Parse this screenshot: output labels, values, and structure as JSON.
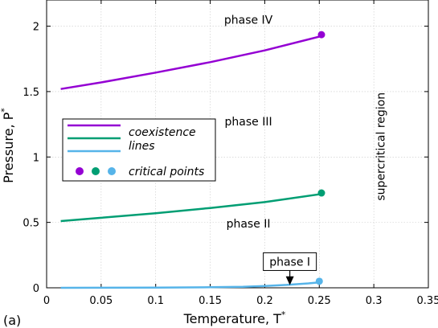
{
  "chart_data": {
    "type": "line",
    "panel_label": "(a)",
    "xlabel": "Temperature, T",
    "xlabel_sup": "*",
    "ylabel": "Pressure, P",
    "ylabel_sup": "*",
    "xlim": [
      0,
      0.35
    ],
    "ylim": [
      0,
      2.2
    ],
    "xticks": [
      0,
      0.05,
      0.1,
      0.15,
      0.2,
      0.25,
      0.3,
      0.35
    ],
    "xtick_labels": [
      "0",
      "0.05",
      "0.1",
      "0.15",
      "0.2",
      "0.25",
      "0.3",
      "0.35"
    ],
    "yticks": [
      0,
      0.5,
      1,
      1.5,
      2
    ],
    "ytick_labels": [
      "0",
      "0.5",
      "1",
      "1.5",
      "2"
    ],
    "grid": true,
    "series": [
      {
        "color": "#9400d3",
        "x": [
          0.013,
          0.05,
          0.1,
          0.15,
          0.2,
          0.25
        ],
        "y": [
          1.52,
          1.57,
          1.645,
          1.725,
          1.815,
          1.92
        ],
        "critical_point": [
          0.252,
          1.935
        ]
      },
      {
        "color": "#009e73",
        "x": [
          0.013,
          0.05,
          0.1,
          0.15,
          0.2,
          0.25
        ],
        "y": [
          0.51,
          0.535,
          0.57,
          0.61,
          0.655,
          0.715
        ],
        "critical_point": [
          0.252,
          0.725
        ]
      },
      {
        "color": "#56b4e9",
        "x": [
          0.013,
          0.1,
          0.15,
          0.18,
          0.2,
          0.22,
          0.24,
          0.25
        ],
        "y": [
          0.0,
          0.001,
          0.004,
          0.008,
          0.014,
          0.022,
          0.034,
          0.042
        ],
        "critical_point": [
          0.25,
          0.05
        ]
      }
    ],
    "region_labels": [
      {
        "text": "phase IV",
        "x": 0.185,
        "y": 2.02
      },
      {
        "text": "phase III",
        "x": 0.185,
        "y": 1.24
      },
      {
        "text": "phase II",
        "x": 0.185,
        "y": 0.46
      }
    ],
    "vertical_label": {
      "text": "supercritical region",
      "x": 0.31,
      "y": 1.08
    },
    "callout": {
      "text": "phase I",
      "box_center": [
        0.223,
        0.2
      ],
      "arrow_tip": [
        0.223,
        0.02
      ]
    },
    "legend": {
      "position": "center-left",
      "line_colors": [
        "#9400d3",
        "#009e73",
        "#56b4e9"
      ],
      "line_labels": [
        "coexistence",
        "lines"
      ],
      "point_colors": [
        "#9400d3",
        "#009e73",
        "#56b4e9"
      ],
      "point_label": "critical points"
    }
  }
}
